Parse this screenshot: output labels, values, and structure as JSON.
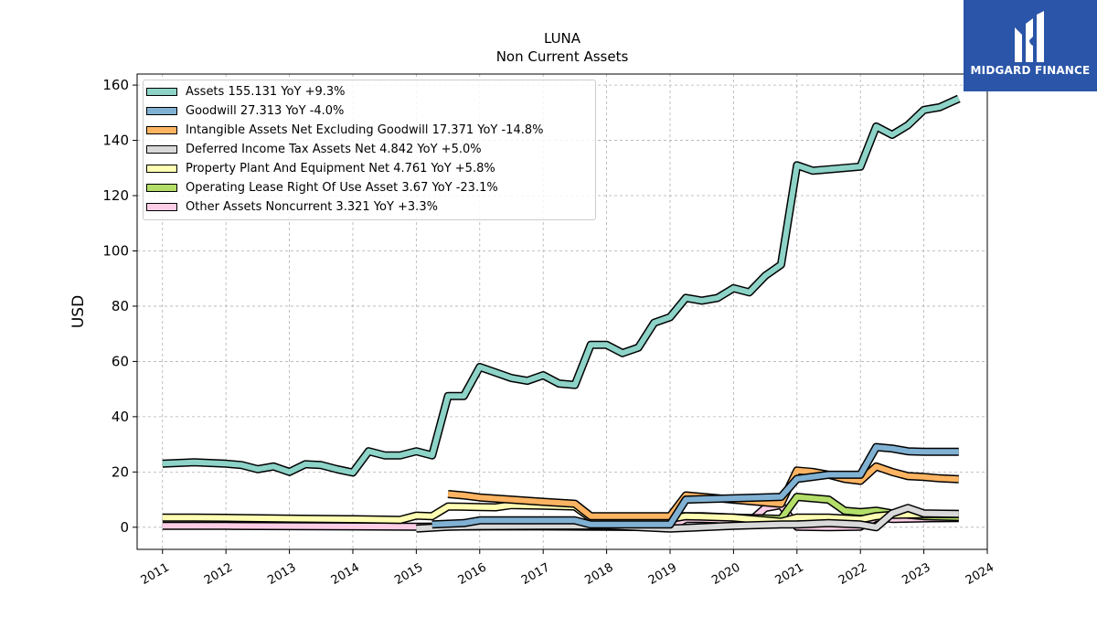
{
  "logo": {
    "text": "MIDGARD FINANCE",
    "background": "#2a55a8"
  },
  "chart_data": {
    "type": "line",
    "title": "LUNA",
    "subtitle": "Non Current  Assets",
    "ylabel": "USD",
    "xlabel": "",
    "xlim": [
      2010.6,
      2024.0
    ],
    "ylim": [
      -8,
      164
    ],
    "yticks": [
      0,
      20,
      40,
      60,
      80,
      100,
      120,
      140,
      160
    ],
    "xticks": [
      "2011",
      "2012",
      "2013",
      "2014",
      "2015",
      "2016",
      "2017",
      "2018",
      "2019",
      "2020",
      "2021",
      "2022",
      "2023",
      "2024"
    ],
    "grid": true,
    "legend_position": "top-left",
    "series": [
      {
        "name": "Assets",
        "legend": "Assets  155.131 YoY +9.3%",
        "color": "#8dd3c7",
        "points": [
          [
            2011.0,
            23
          ],
          [
            2011.5,
            23.5
          ],
          [
            2012.0,
            23
          ],
          [
            2012.25,
            22.5
          ],
          [
            2012.5,
            21
          ],
          [
            2012.75,
            22
          ],
          [
            2013.0,
            20
          ],
          [
            2013.25,
            22.8
          ],
          [
            2013.5,
            22.5
          ],
          [
            2013.75,
            21
          ],
          [
            2014.0,
            19.8
          ],
          [
            2014.25,
            27.5
          ],
          [
            2014.5,
            26
          ],
          [
            2014.75,
            26
          ],
          [
            2015.0,
            27.5
          ],
          [
            2015.25,
            26
          ],
          [
            2015.5,
            47.5
          ],
          [
            2015.75,
            47.5
          ],
          [
            2016.0,
            58
          ],
          [
            2016.25,
            56
          ],
          [
            2016.5,
            54
          ],
          [
            2016.75,
            53
          ],
          [
            2017.0,
            55
          ],
          [
            2017.25,
            52
          ],
          [
            2017.5,
            51.5
          ],
          [
            2017.75,
            66
          ],
          [
            2018.0,
            66
          ],
          [
            2018.25,
            63
          ],
          [
            2018.5,
            65
          ],
          [
            2018.75,
            74
          ],
          [
            2019.0,
            76
          ],
          [
            2019.25,
            83
          ],
          [
            2019.5,
            82
          ],
          [
            2019.75,
            83
          ],
          [
            2020.0,
            86.5
          ],
          [
            2020.25,
            85
          ],
          [
            2020.5,
            91
          ],
          [
            2020.75,
            95
          ],
          [
            2021.0,
            131
          ],
          [
            2021.25,
            129
          ],
          [
            2021.5,
            129.5
          ],
          [
            2021.75,
            130
          ],
          [
            2022.0,
            130.5
          ],
          [
            2022.25,
            145
          ],
          [
            2022.5,
            142
          ],
          [
            2022.75,
            145.5
          ],
          [
            2023.0,
            151
          ],
          [
            2023.25,
            152
          ],
          [
            2023.55,
            155.1
          ]
        ]
      },
      {
        "name": "Goodwill",
        "legend": "Goodwill  27.313 YoY -4.0%",
        "color": "#80b1d3",
        "points": [
          [
            2015.25,
            1
          ],
          [
            2015.75,
            1.5
          ],
          [
            2016.0,
            2.5
          ],
          [
            2016.5,
            2.5
          ],
          [
            2017.0,
            2.5
          ],
          [
            2017.5,
            2.5
          ],
          [
            2017.75,
            1
          ],
          [
            2018.5,
            1
          ],
          [
            2018.75,
            1
          ],
          [
            2019.0,
            1
          ],
          [
            2019.25,
            10
          ],
          [
            2020.0,
            10.5
          ],
          [
            2020.75,
            11
          ],
          [
            2021.0,
            17.5
          ],
          [
            2021.5,
            19
          ],
          [
            2022.0,
            19
          ],
          [
            2022.25,
            29
          ],
          [
            2022.5,
            28.5
          ],
          [
            2022.75,
            27.5
          ],
          [
            2023.0,
            27.3
          ],
          [
            2023.55,
            27.3
          ]
        ]
      },
      {
        "name": "Intangible Assets Net Excluding Goodwill",
        "legend": "Intangible Assets Net Excluding Goodwill  17.371 YoY -14.8%",
        "color": "#fdb462",
        "points": [
          [
            2015.5,
            12
          ],
          [
            2015.75,
            11.5
          ],
          [
            2016.0,
            10.8
          ],
          [
            2016.5,
            10
          ],
          [
            2017.0,
            9.2
          ],
          [
            2017.5,
            8.5
          ],
          [
            2017.75,
            4
          ],
          [
            2019.0,
            4
          ],
          [
            2019.25,
            11.5
          ],
          [
            2020.0,
            10
          ],
          [
            2020.5,
            9
          ],
          [
            2020.75,
            8.5
          ],
          [
            2021.0,
            20.5
          ],
          [
            2021.25,
            20
          ],
          [
            2021.5,
            19
          ],
          [
            2021.75,
            17.5
          ],
          [
            2022.0,
            16.8
          ],
          [
            2022.25,
            22
          ],
          [
            2022.5,
            20
          ],
          [
            2022.75,
            18.5
          ],
          [
            2023.0,
            18.2
          ],
          [
            2023.25,
            17.7
          ],
          [
            2023.55,
            17.4
          ]
        ]
      },
      {
        "name": "Deferred Income Tax Assets Net",
        "legend": "Deferred Income Tax Assets Net  4.842 YoY +5.0%",
        "color": "#d9d9d9",
        "points": [
          [
            2015.0,
            -0.5
          ],
          [
            2015.5,
            0.2
          ],
          [
            2016.0,
            0.4
          ],
          [
            2017.0,
            0.5
          ],
          [
            2018.0,
            0.6
          ],
          [
            2019.0,
            -0.5
          ],
          [
            2019.5,
            0
          ],
          [
            2020.0,
            0.5
          ],
          [
            2020.75,
            1
          ],
          [
            2021.0,
            1
          ],
          [
            2021.5,
            1.5
          ],
          [
            2022.0,
            1
          ],
          [
            2022.25,
            0
          ],
          [
            2022.5,
            5
          ],
          [
            2022.75,
            7
          ],
          [
            2023.0,
            5
          ],
          [
            2023.55,
            4.8
          ]
        ]
      },
      {
        "name": "Property Plant And Equipment Net",
        "legend": "Property Plant And Equipment Net  4.761 YoY +5.8%",
        "color": "#ffffb3",
        "points": [
          [
            2011.0,
            3.5
          ],
          [
            2011.5,
            3.5
          ],
          [
            2012.0,
            3.4
          ],
          [
            2013.0,
            3.1
          ],
          [
            2014.0,
            2.9
          ],
          [
            2014.75,
            2.7
          ],
          [
            2015.0,
            4.2
          ],
          [
            2015.25,
            4
          ],
          [
            2015.5,
            7.5
          ],
          [
            2016.0,
            7.3
          ],
          [
            2016.25,
            7.2
          ],
          [
            2016.5,
            8
          ],
          [
            2017.0,
            7.8
          ],
          [
            2017.5,
            7.5
          ],
          [
            2017.75,
            3.3
          ],
          [
            2018.0,
            3.5
          ],
          [
            2018.5,
            3.3
          ],
          [
            2018.75,
            2.7
          ],
          [
            2019.0,
            3
          ],
          [
            2019.25,
            4
          ],
          [
            2020.0,
            3.5
          ],
          [
            2020.75,
            2
          ],
          [
            2021.0,
            3.5
          ],
          [
            2021.5,
            3.5
          ],
          [
            2022.0,
            2.8
          ],
          [
            2022.25,
            4
          ],
          [
            2022.5,
            4.5
          ],
          [
            2023.0,
            4.7
          ],
          [
            2023.55,
            4.8
          ]
        ]
      },
      {
        "name": "Operating Lease Right Of Use Asset",
        "legend": "Operating Lease Right Of Use Asset  3.67 YoY -23.1%",
        "color": "#b3de69",
        "points": [
          [
            2019.0,
            4
          ],
          [
            2019.5,
            4
          ],
          [
            2020.0,
            3.5
          ],
          [
            2020.5,
            3.2
          ],
          [
            2020.75,
            3
          ],
          [
            2021.0,
            11
          ],
          [
            2021.25,
            10.5
          ],
          [
            2021.5,
            10
          ],
          [
            2021.75,
            6
          ],
          [
            2022.0,
            5.5
          ],
          [
            2022.25,
            6
          ],
          [
            2022.5,
            5
          ],
          [
            2022.75,
            4.5
          ],
          [
            2023.0,
            4
          ],
          [
            2023.55,
            3.7
          ]
        ]
      },
      {
        "name": "Other Assets Noncurrent",
        "legend": "Other Assets Noncurrent  3.321 YoY +3.3%",
        "color": "#fccde5",
        "points": [
          [
            2011.0,
            0.5
          ],
          [
            2011.5,
            0.5
          ],
          [
            2012.0,
            0.5
          ],
          [
            2013.0,
            0.4
          ],
          [
            2014.0,
            0.3
          ],
          [
            2015.0,
            0.2
          ],
          [
            2016.0,
            0.3
          ],
          [
            2017.0,
            0.3
          ],
          [
            2018.0,
            0.2
          ],
          [
            2019.0,
            0
          ],
          [
            2019.25,
            3
          ],
          [
            2019.5,
            3
          ],
          [
            2019.75,
            2.8
          ],
          [
            2020.0,
            2
          ],
          [
            2020.25,
            2
          ],
          [
            2020.5,
            7
          ],
          [
            2020.75,
            8
          ],
          [
            2021.0,
            0.2
          ],
          [
            2021.5,
            0
          ],
          [
            2022.0,
            0.2
          ],
          [
            2022.25,
            3.5
          ],
          [
            2022.5,
            3
          ],
          [
            2023.0,
            3.2
          ],
          [
            2023.55,
            3.3
          ]
        ]
      }
    ]
  }
}
